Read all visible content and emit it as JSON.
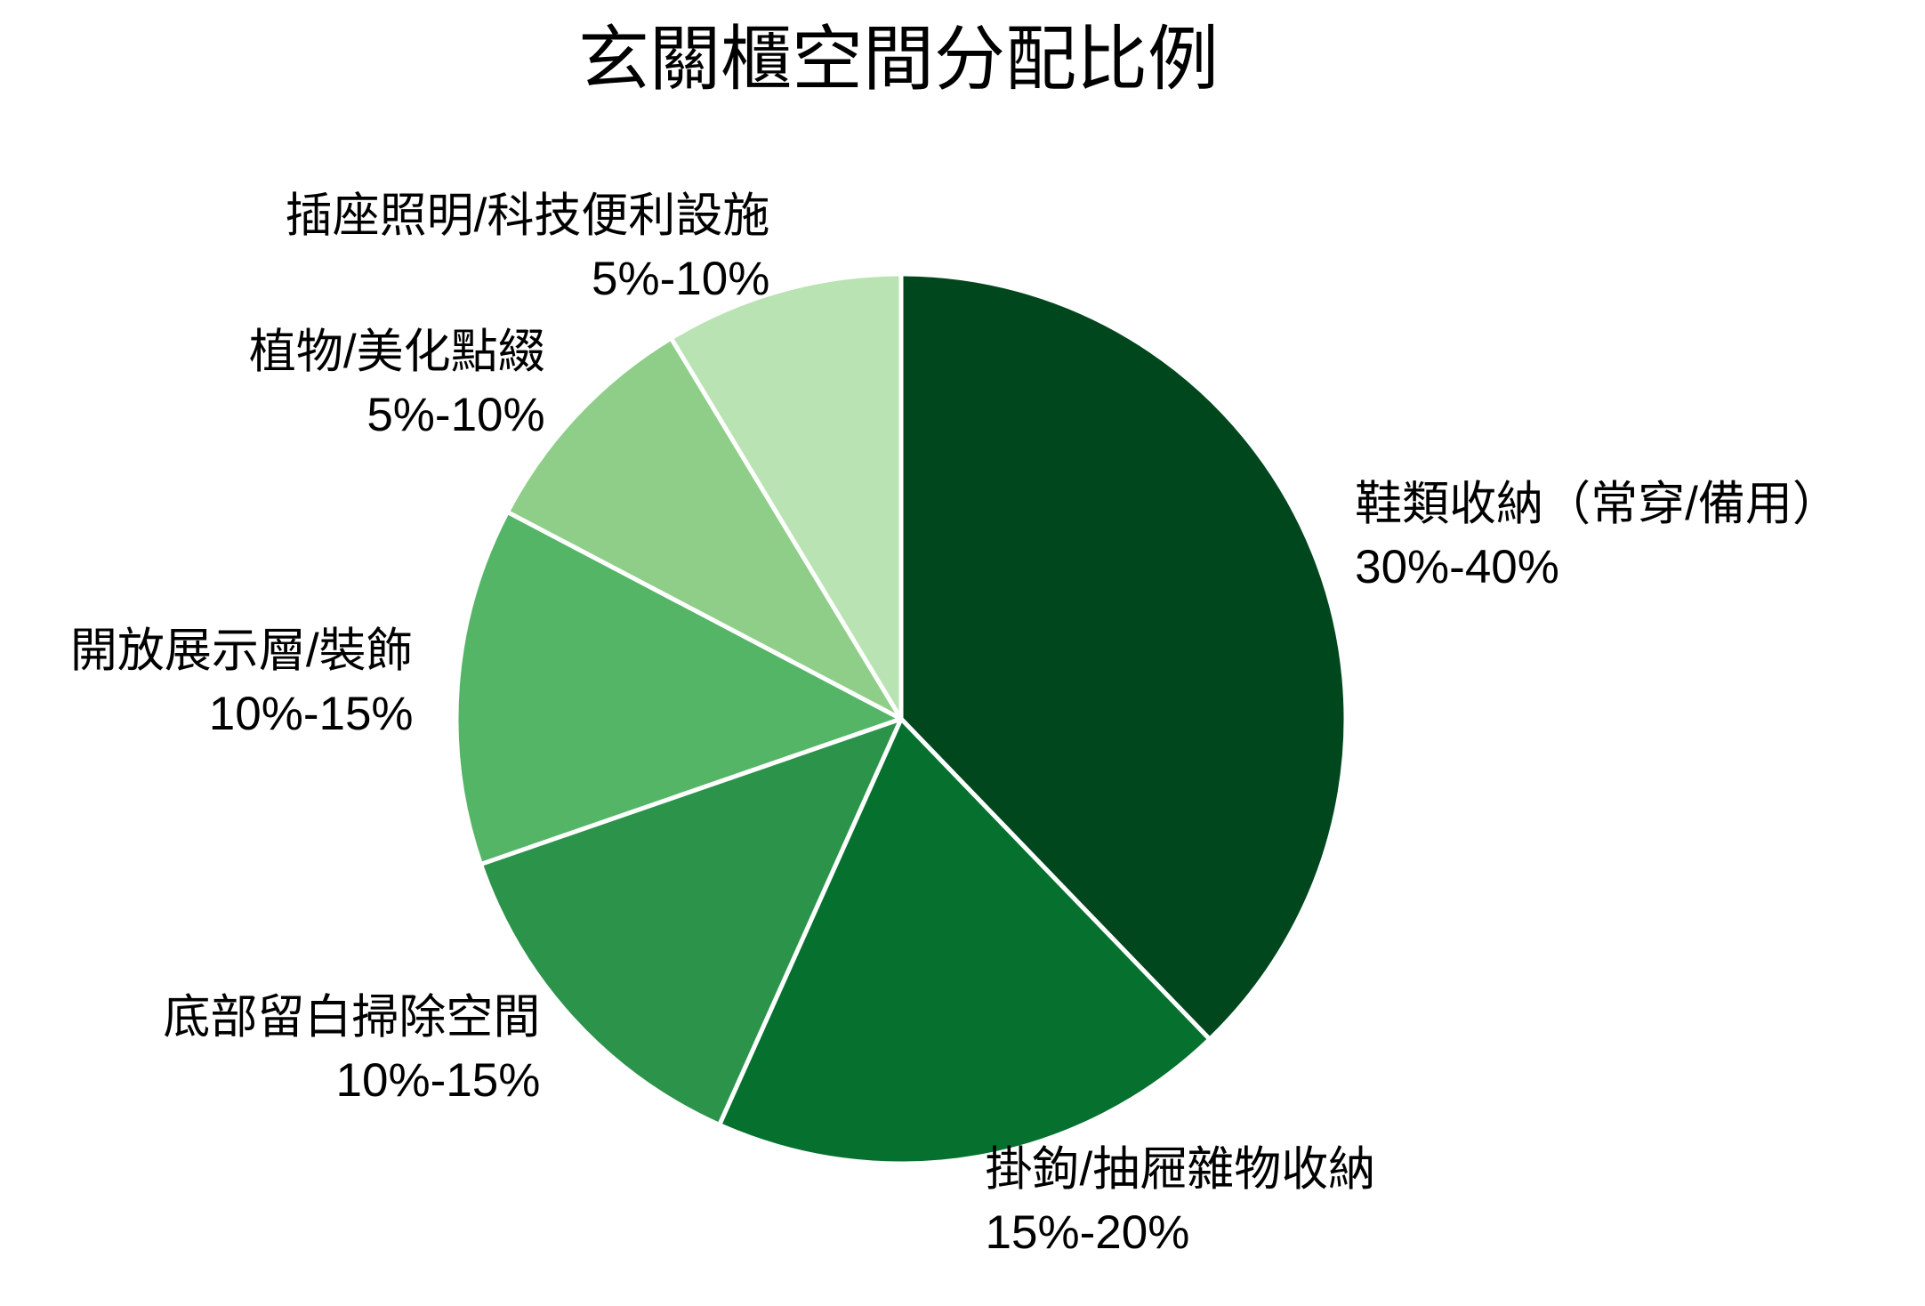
{
  "chart_data": {
    "type": "pie",
    "title": "玄關櫃空間分配比例",
    "categories": [
      "鞋類收納（常穿/備用）",
      "掛鉤/抽屜雜物收納",
      "底部留白掃除空間",
      "開放展示層/裝飾",
      "植物/美化點綴",
      "插座照明/科技便利設施"
    ],
    "range_labels": [
      "30%-40%",
      "15%-20%",
      "10%-15%",
      "10%-15%",
      "5%-10%",
      "5%-10%"
    ],
    "values": [
      37.8,
      18.9,
      13.0,
      13.0,
      8.65,
      8.65
    ],
    "value_unit": "approx. % share of pie (measured from wedge angles)",
    "colors": [
      "#00471e",
      "#06712f",
      "#2c934b",
      "#55b567",
      "#8ece88",
      "#b9e3b3"
    ],
    "start_angle": 90,
    "direction": "clockwise",
    "wedge_edge_color": "#ffffff",
    "legend": false,
    "labels_outside": true
  }
}
